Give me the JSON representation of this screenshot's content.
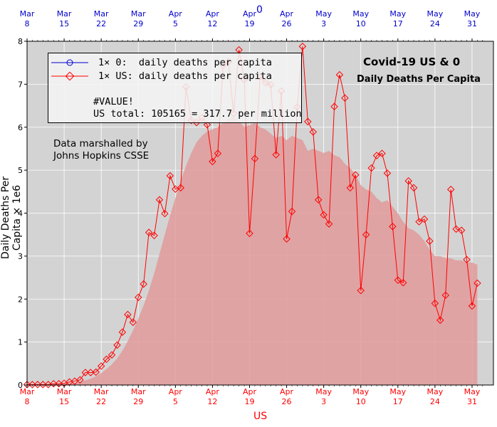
{
  "chart_data": {
    "type": "line",
    "title": "Covid-19 US & 0",
    "subtitle": "Daily Deaths Per Capita",
    "xlabel": "US",
    "top_xlabel": "0",
    "ylabel": "Daily Deaths Per Capita × 1e6",
    "ylim": [
      0,
      8
    ],
    "yticks": [
      0,
      1,
      2,
      3,
      4,
      5,
      6,
      7,
      8
    ],
    "grid": true,
    "x_dates": [
      "Mar 8",
      "Mar 9",
      "Mar 10",
      "Mar 11",
      "Mar 12",
      "Mar 13",
      "Mar 14",
      "Mar 15",
      "Mar 16",
      "Mar 17",
      "Mar 18",
      "Mar 19",
      "Mar 20",
      "Mar 21",
      "Mar 22",
      "Mar 23",
      "Mar 24",
      "Mar 25",
      "Mar 26",
      "Mar 27",
      "Mar 28",
      "Mar 29",
      "Mar 30",
      "Mar 31",
      "Apr 1",
      "Apr 2",
      "Apr 3",
      "Apr 4",
      "Apr 5",
      "Apr 6",
      "Apr 7",
      "Apr 8",
      "Apr 9",
      "Apr 10",
      "Apr 11",
      "Apr 12",
      "Apr 13",
      "Apr 14",
      "Apr 15",
      "Apr 16",
      "Apr 17",
      "Apr 18",
      "Apr 19",
      "Apr 20",
      "Apr 21",
      "Apr 22",
      "Apr 23",
      "Apr 24",
      "Apr 25",
      "Apr 26",
      "Apr 27",
      "Apr 28",
      "Apr 29",
      "Apr 30",
      "May 1",
      "May 2",
      "May 3",
      "May 4",
      "May 5",
      "May 6",
      "May 7",
      "May 8",
      "May 9",
      "May 10",
      "May 11",
      "May 12",
      "May 13",
      "May 14",
      "May 15",
      "May 16",
      "May 17",
      "May 18",
      "May 19",
      "May 20",
      "May 21",
      "May 22",
      "May 23",
      "May 24",
      "May 25",
      "May 26",
      "May 27",
      "May 28",
      "May 29",
      "May 30",
      "May 31",
      "Jun 1",
      "Jun 2"
    ],
    "x_tick_labels": [
      {
        "month": "Mar",
        "day": "8",
        "date": "Mar 8"
      },
      {
        "month": "Mar",
        "day": "15",
        "date": "Mar 15"
      },
      {
        "month": "Mar",
        "day": "22",
        "date": "Mar 22"
      },
      {
        "month": "Mar",
        "day": "29",
        "date": "Mar 29"
      },
      {
        "month": "Apr",
        "day": "5",
        "date": "Apr 5"
      },
      {
        "month": "Apr",
        "day": "12",
        "date": "Apr 12"
      },
      {
        "month": "Apr",
        "day": "19",
        "date": "Apr 19"
      },
      {
        "month": "Apr",
        "day": "26",
        "date": "Apr 26"
      },
      {
        "month": "May",
        "day": "3",
        "date": "May 3"
      },
      {
        "month": "May",
        "day": "10",
        "date": "May 10"
      },
      {
        "month": "May",
        "day": "17",
        "date": "May 17"
      },
      {
        "month": "May",
        "day": "24",
        "date": "May 24"
      },
      {
        "month": "May",
        "day": "31",
        "date": "May 31"
      }
    ],
    "series": [
      {
        "name": "1× 0:  daily deaths per capita",
        "color": "#0000cc",
        "values": []
      },
      {
        "name": "1× US: daily deaths per capita",
        "color": "#ff0000",
        "values": [
          0.01,
          0.01,
          0.01,
          0.01,
          0.01,
          0.03,
          0.03,
          0.04,
          0.07,
          0.09,
          0.12,
          0.29,
          0.29,
          0.3,
          0.44,
          0.6,
          0.7,
          0.93,
          1.23,
          1.64,
          1.46,
          2.04,
          2.35,
          3.55,
          3.48,
          4.31,
          3.99,
          4.87,
          4.56,
          4.59,
          6.94,
          6.16,
          6.11,
          6.22,
          6.06,
          5.2,
          5.39,
          7.44,
          7.52,
          6.32,
          7.8,
          7.11,
          3.53,
          5.27,
          7.17,
          7.04,
          6.99,
          5.36,
          6.84,
          3.4,
          4.04,
          6.47,
          7.88,
          6.13,
          5.89,
          4.31,
          3.96,
          3.75,
          6.48,
          7.22,
          6.68,
          4.59,
          4.89,
          2.2,
          3.5,
          5.05,
          5.34,
          5.39,
          4.93,
          3.69,
          2.44,
          2.38,
          4.75,
          4.59,
          3.8,
          3.86,
          3.35,
          1.9,
          1.51,
          2.09,
          4.55,
          3.63,
          3.6,
          2.92,
          1.84,
          2.37
        ]
      },
      {
        "name": "7-day average (shaded)",
        "color": "#e07878",
        "values": [
          0.01,
          0.01,
          0.01,
          0.01,
          0.01,
          0.02,
          0.02,
          0.03,
          0.04,
          0.05,
          0.07,
          0.11,
          0.15,
          0.2,
          0.28,
          0.37,
          0.48,
          0.62,
          0.8,
          1.02,
          1.27,
          1.55,
          1.85,
          2.2,
          2.6,
          3.05,
          3.5,
          3.95,
          4.35,
          4.75,
          5.1,
          5.4,
          5.65,
          5.8,
          5.9,
          5.95,
          6.0,
          6.1,
          6.2,
          6.25,
          6.15,
          6.0,
          6.05,
          6.1,
          6.0,
          5.95,
          5.85,
          5.75,
          5.8,
          5.7,
          5.8,
          5.75,
          5.7,
          5.45,
          5.5,
          5.45,
          5.4,
          5.45,
          5.35,
          5.3,
          5.15,
          5.05,
          4.9,
          4.65,
          4.55,
          4.5,
          4.35,
          4.25,
          4.3,
          4.15,
          4.0,
          3.8,
          3.65,
          3.6,
          3.5,
          3.35,
          3.15,
          3.0,
          3.0,
          2.95,
          2.95,
          2.9,
          2.9,
          2.85,
          2.85,
          2.8
        ]
      }
    ]
  },
  "legend": {
    "entry1": "1× 0:  daily deaths per capita",
    "entry2": "1× US: daily deaths per capita",
    "line3": "#VALUE!",
    "line4": "US total: 105165 = 317.7 per million"
  },
  "annotation": {
    "line1": "Data marshalled by",
    "line2": "Johns Hopkins CSSE"
  },
  "colors": {
    "us_line": "#ff0000",
    "zero_line": "#0000cc",
    "fill": "#e09a9a",
    "plot_bg": "#d3d3d3"
  }
}
